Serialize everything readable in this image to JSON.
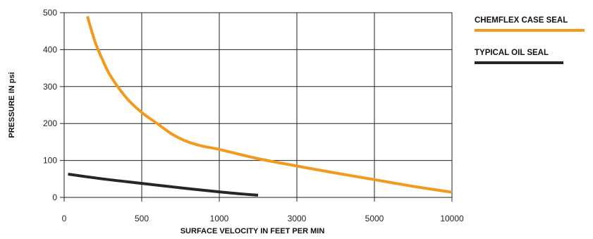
{
  "chart_data": {
    "type": "line",
    "xlabel": "SURFACE VELOCITY IN FEET PER MIN",
    "ylabel": "PRESSURE IN psi",
    "ylim": [
      0,
      500
    ],
    "yticks": [
      "0",
      "100",
      "200",
      "300",
      "400",
      "500"
    ],
    "xticks": [
      "0",
      "500",
      "1000",
      "3000",
      "5000",
      "10000"
    ],
    "grid": true,
    "legend_position": "right",
    "series": [
      {
        "name": "CHEMFLEX CASE SEAL",
        "color": "#F39A1E",
        "points": [
          {
            "x": 150,
            "y": 490
          },
          {
            "x": 200,
            "y": 420
          },
          {
            "x": 250,
            "y": 370
          },
          {
            "x": 300,
            "y": 328
          },
          {
            "x": 400,
            "y": 270
          },
          {
            "x": 500,
            "y": 230
          },
          {
            "x": 600,
            "y": 200
          },
          {
            "x": 700,
            "y": 170
          },
          {
            "x": 800,
            "y": 150
          },
          {
            "x": 900,
            "y": 138
          },
          {
            "x": 1000,
            "y": 130
          },
          {
            "x": 2000,
            "y": 105
          },
          {
            "x": 3000,
            "y": 85
          },
          {
            "x": 4000,
            "y": 66
          },
          {
            "x": 5000,
            "y": 48
          },
          {
            "x": 7500,
            "y": 30
          },
          {
            "x": 10000,
            "y": 14
          }
        ]
      },
      {
        "name": "TYPICAL OIL SEAL",
        "color": "#2B2424",
        "points": [
          {
            "x": 25,
            "y": 63
          },
          {
            "x": 250,
            "y": 50
          },
          {
            "x": 500,
            "y": 38
          },
          {
            "x": 750,
            "y": 26
          },
          {
            "x": 1000,
            "y": 15
          },
          {
            "x": 1500,
            "y": 10
          },
          {
            "x": 2000,
            "y": 6
          }
        ]
      }
    ]
  }
}
